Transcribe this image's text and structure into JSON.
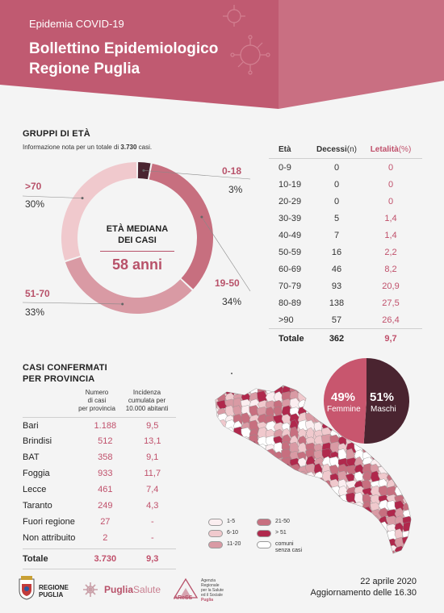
{
  "header": {
    "subtitle": "Epidemia COVID-19",
    "title_line1": "Bollettino Epidemiologico",
    "title_line2": "Regione Puglia",
    "color": "#b8526a"
  },
  "age_groups": {
    "section_title": "GRUPPI DI ETÀ",
    "note_prefix": "Informazione nota per un totale di ",
    "note_total": "3.730",
    "note_suffix": " casi.",
    "center_label_1": "ETÀ MEDIANA",
    "center_label_2": "DEI CASI",
    "median": "58 anni",
    "segments": [
      {
        "label": "0-18",
        "pct": "3%",
        "value": 3,
        "color": "#4a2430"
      },
      {
        "label": "19-50",
        "pct": "34%",
        "value": 34,
        "color": "#c76f7f"
      },
      {
        "label": "51-70",
        "pct": "33%",
        "value": 33,
        "color": "#d99aa4"
      },
      {
        "label": ">70",
        "pct": "30%",
        "value": 30,
        "color": "#f0c9cd"
      }
    ]
  },
  "age_table": {
    "headers": {
      "eta": "Età",
      "decessi": "Decessi",
      "decessi_unit": "(n)",
      "letalita": "Letalità",
      "letalita_unit": "(%)"
    },
    "rows": [
      {
        "eta": "0-9",
        "decessi": "0",
        "letalita": "0"
      },
      {
        "eta": "10-19",
        "decessi": "0",
        "letalita": "0"
      },
      {
        "eta": "20-29",
        "decessi": "0",
        "letalita": "0"
      },
      {
        "eta": "30-39",
        "decessi": "5",
        "letalita": "1,4"
      },
      {
        "eta": "40-49",
        "decessi": "7",
        "letalita": "1,4"
      },
      {
        "eta": "50-59",
        "decessi": "16",
        "letalita": "2,2"
      },
      {
        "eta": "60-69",
        "decessi": "46",
        "letalita": "8,2"
      },
      {
        "eta": "70-79",
        "decessi": "93",
        "letalita": "20,9"
      },
      {
        "eta": "80-89",
        "decessi": "138",
        "letalita": "27,5"
      },
      {
        "eta": ">90",
        "decessi": "57",
        "letalita": "26,4"
      }
    ],
    "total": {
      "eta": "Totale",
      "decessi": "362",
      "letalita": "9,7"
    }
  },
  "provinces": {
    "section_title_1": "CASI CONFERMATI",
    "section_title_2": "PER PROVINCIA",
    "col2_header": [
      "Numero",
      "di casi",
      "per provincia"
    ],
    "col3_header": [
      "Incidenza",
      "cumulata per",
      "10.000 abitanti"
    ],
    "rows": [
      {
        "name": "Bari",
        "casi": "1.188",
        "incidenza": "9,5"
      },
      {
        "name": "Brindisi",
        "casi": "512",
        "incidenza": "13,1"
      },
      {
        "name": "BAT",
        "casi": "358",
        "incidenza": "9,1"
      },
      {
        "name": "Foggia",
        "casi": "933",
        "incidenza": "11,7"
      },
      {
        "name": "Lecce",
        "casi": "461",
        "incidenza": "7,4"
      },
      {
        "name": "Taranto",
        "casi": "249",
        "incidenza": "4,3"
      },
      {
        "name": "Fuori regione",
        "casi": "27",
        "incidenza": "-"
      },
      {
        "name": "Non attribuito",
        "casi": "2",
        "incidenza": "-"
      }
    ],
    "total": {
      "name": "Totale",
      "casi": "3.730",
      "incidenza": "9,3"
    }
  },
  "gender": {
    "female_pct": "49%",
    "female_label": "Femmine",
    "female_color": "#c8566e",
    "male_pct": "51%",
    "male_label": "Maschi",
    "male_color": "#4a2430",
    "female_value": 49,
    "male_value": 51
  },
  "map_legend": [
    {
      "label": "1-5",
      "color": "#fbeef0"
    },
    {
      "label": "6-10",
      "color": "#f0c9cd"
    },
    {
      "label": "11-20",
      "color": "#d99aa4"
    },
    {
      "label": "21-50",
      "color": "#c76f7f"
    },
    {
      "label": "> 51",
      "color": "#b0284c"
    },
    {
      "label_1": "comuni",
      "label_2": "senza casi",
      "color": "#ffffff"
    }
  ],
  "footer": {
    "date": "22 aprile 2020",
    "update": "Aggiornamento delle 16.30",
    "logo1_line1": "REGIONE",
    "logo1_line2": "PUGLIA",
    "logo2_a": "Puglia",
    "logo2_b": "Salute",
    "logo3_name": "AReSS",
    "logo3_lines": [
      "Agenzia",
      "Regionale",
      "per la Salute",
      "ed il Sociale",
      "Puglia"
    ]
  }
}
